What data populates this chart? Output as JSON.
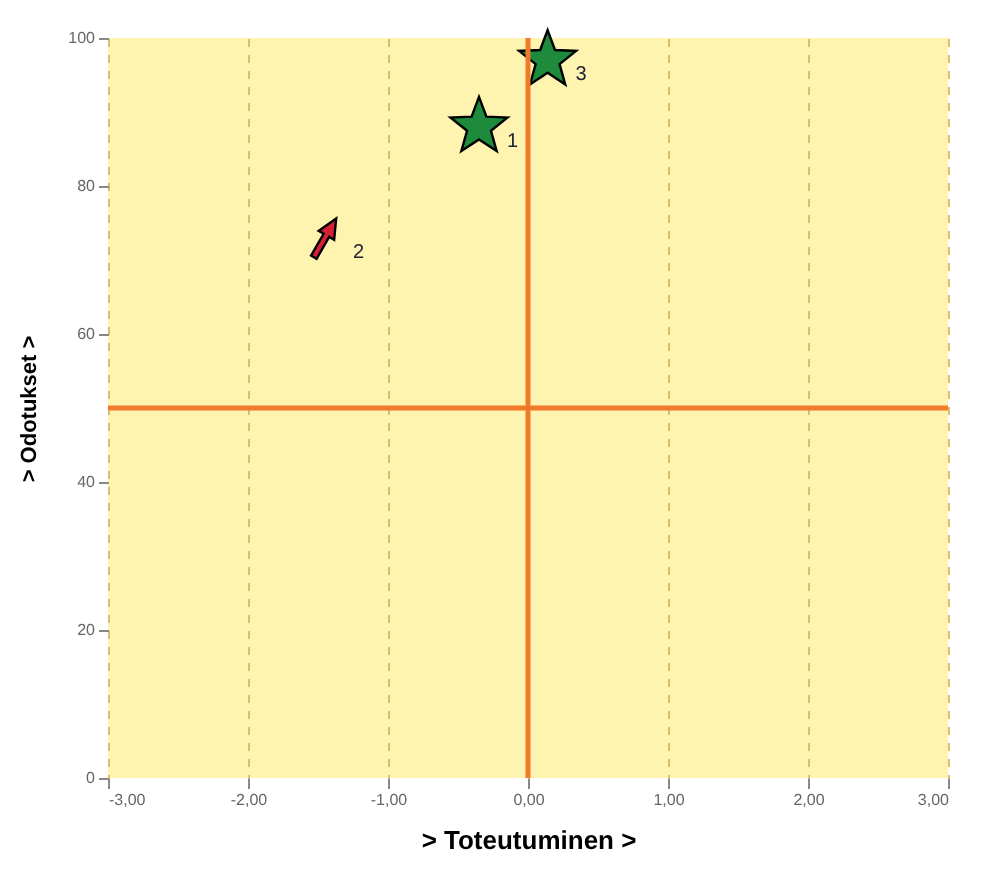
{
  "chart_data": {
    "type": "scatter",
    "xlabel": "> Toteutuminen >",
    "ylabel": "> Odotukset >",
    "xlim": [
      -3,
      3
    ],
    "ylim": [
      0,
      100
    ],
    "xticks": [
      {
        "value": -3,
        "label": "-3,00"
      },
      {
        "value": -2,
        "label": "-2,00"
      },
      {
        "value": -1,
        "label": "-1,00"
      },
      {
        "value": 0,
        "label": "0,00"
      },
      {
        "value": 1,
        "label": "1,00"
      },
      {
        "value": 2,
        "label": "2,00"
      },
      {
        "value": 3,
        "label": "3,00"
      }
    ],
    "yticks": [
      0,
      20,
      40,
      60,
      80,
      100
    ],
    "grid": "x",
    "series": [
      {
        "color": "#1e8a3c",
        "marker": "star",
        "x": [
          -0.35,
          0.14
        ],
        "values": [
          88,
          97
        ]
      },
      {
        "color": "#d42035",
        "marker": "triangle",
        "x": [
          -1.45
        ],
        "values": [
          73
        ]
      }
    ],
    "annotations": [
      {
        "text": "1",
        "x": -0.35,
        "y": 88
      },
      {
        "text": "2",
        "x": -1.45,
        "y": 73
      },
      {
        "text": "3",
        "x": 0.14,
        "y": 97
      }
    ],
    "ref_lines": [
      {
        "axis": "x",
        "value": 0,
        "color": "#f07a2a"
      },
      {
        "axis": "y",
        "value": 50,
        "color": "#f07a2a"
      }
    ]
  }
}
